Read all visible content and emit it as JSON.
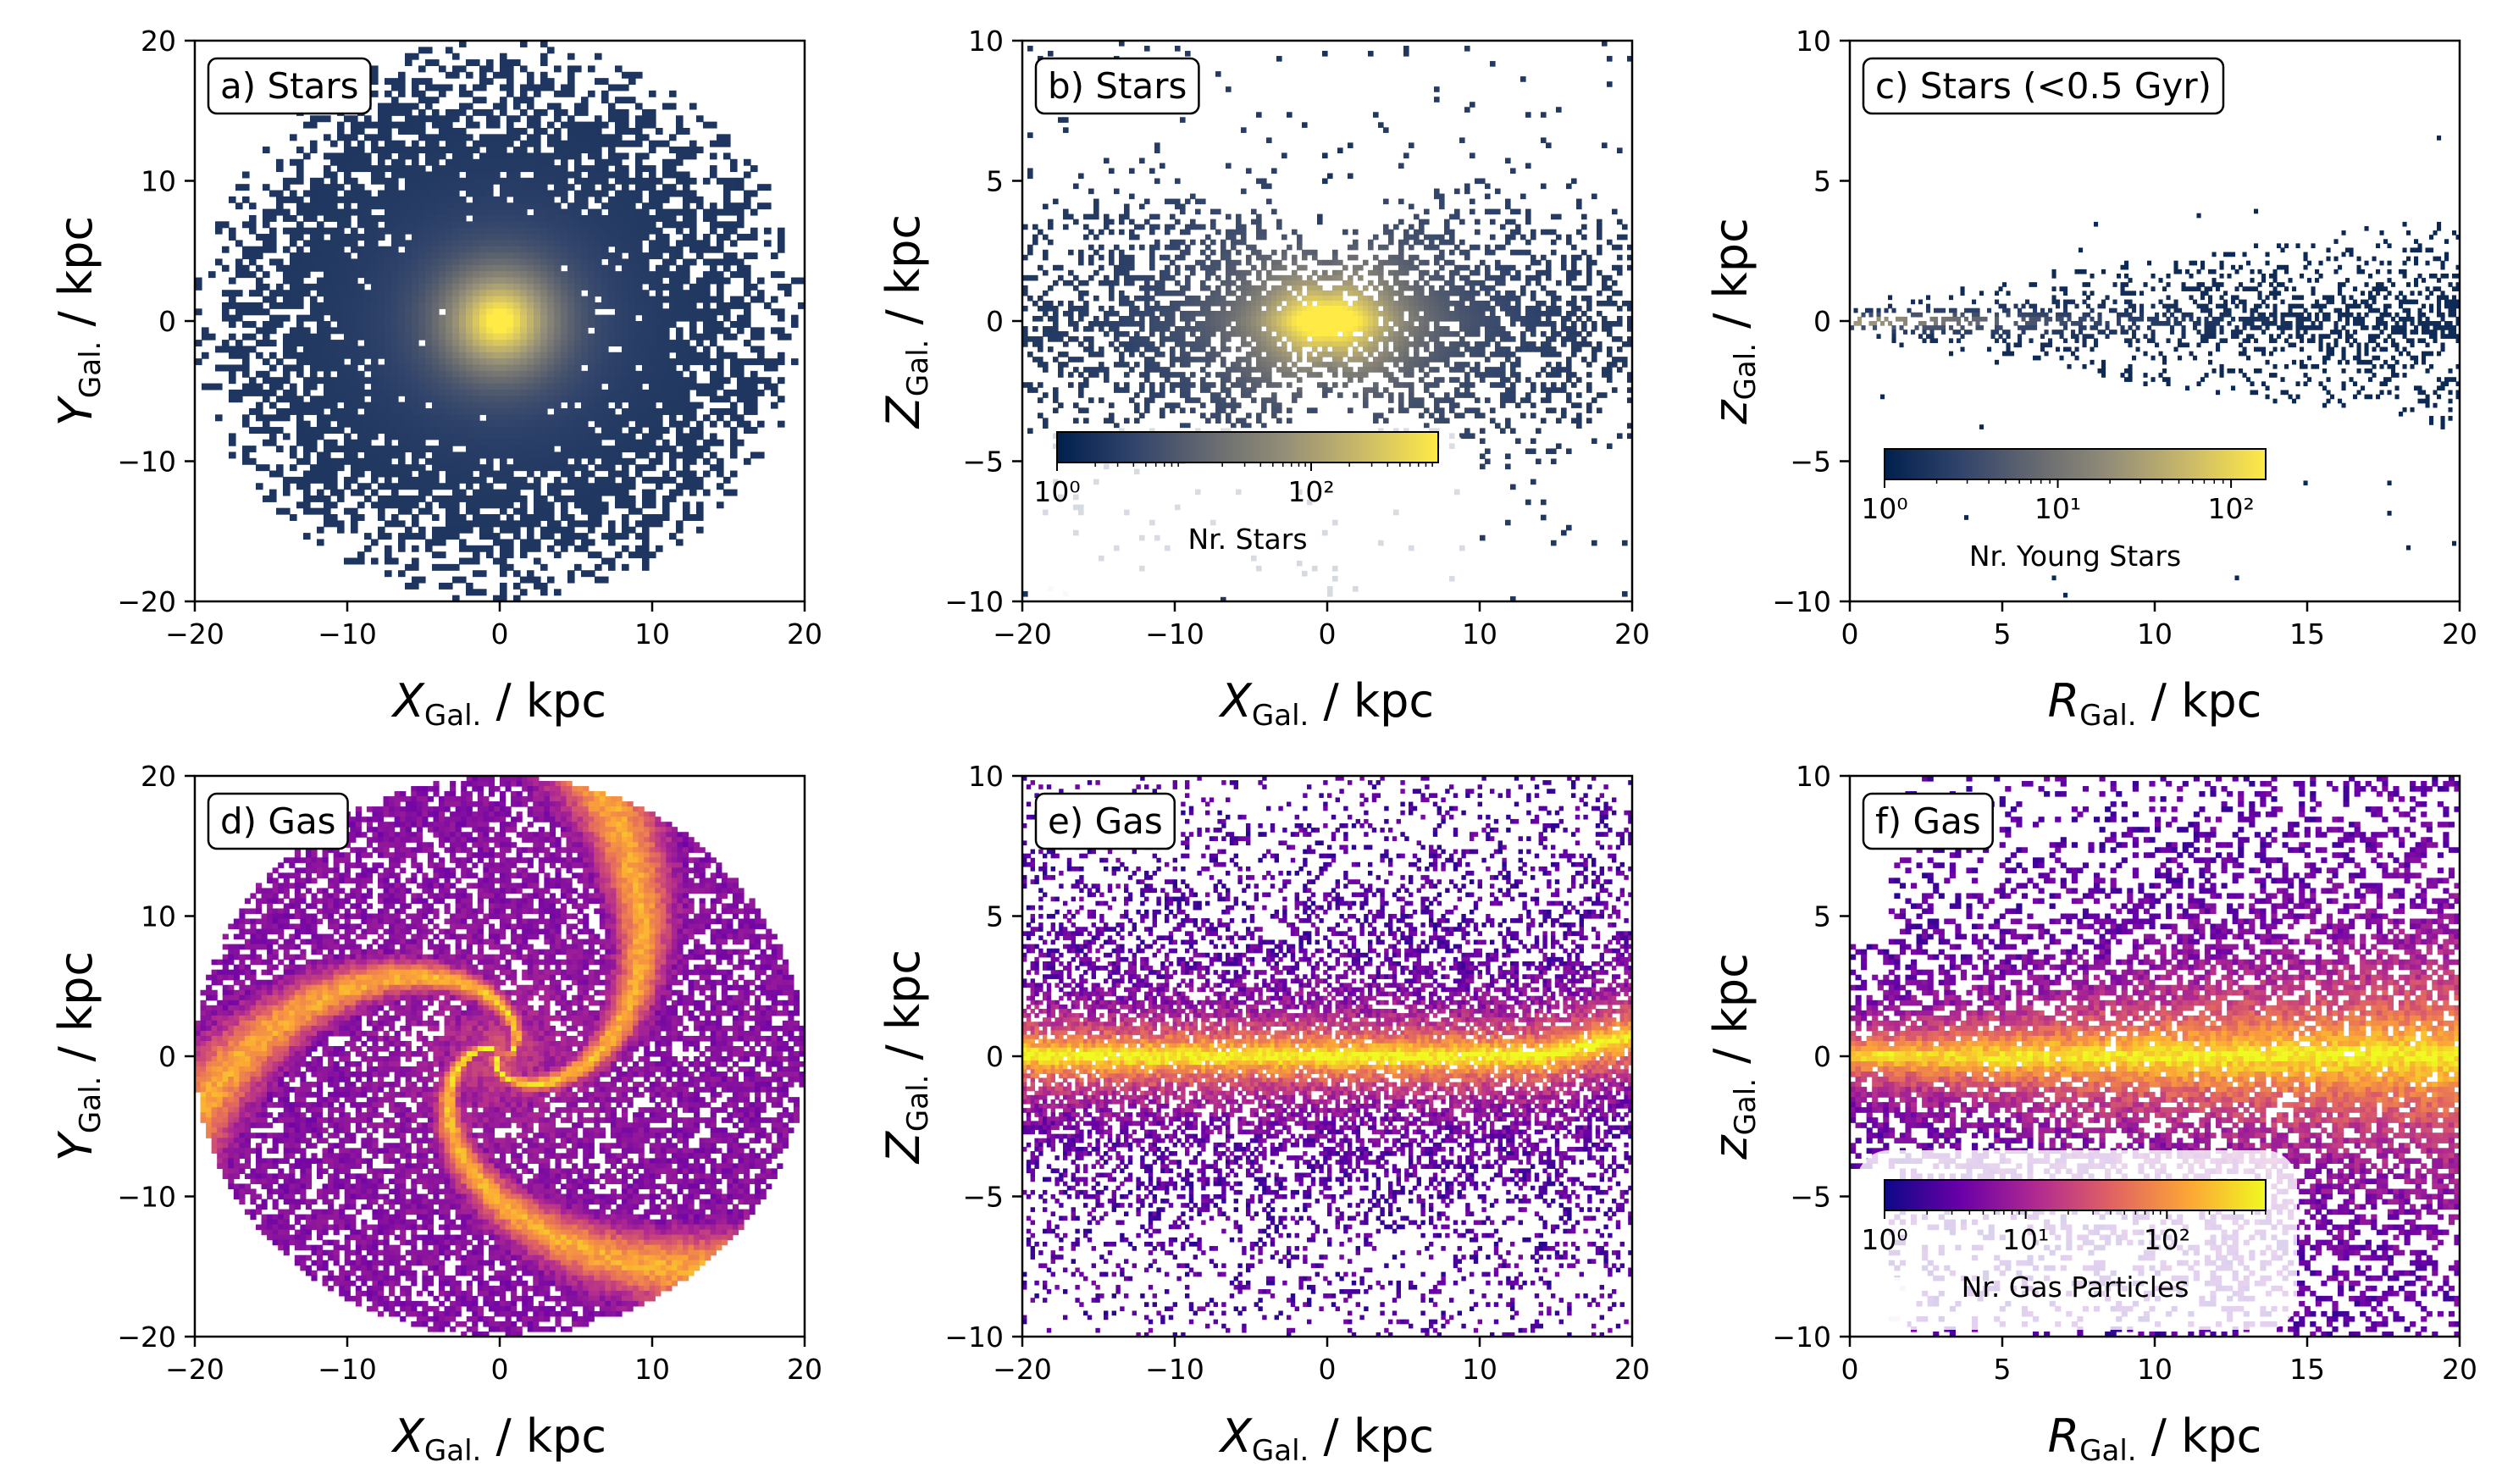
{
  "chart_data": [
    {
      "type": "heatmap",
      "title": "a) Stars",
      "xlabel": {
        "main": "X",
        "sub": "Gal.",
        "unit": " / kpc",
        "italic": true
      },
      "ylabel": {
        "main": "Y",
        "sub": "Gal.",
        "unit": " / kpc",
        "italic": true
      },
      "xlim": [
        -20,
        20
      ],
      "ylim": [
        -20,
        20
      ],
      "xticks": [
        "−20",
        "−10",
        "0",
        "10",
        "20"
      ],
      "yticks": [
        "20",
        "10",
        "0",
        "−10",
        "−20"
      ],
      "colormap": "cividis",
      "distribution": {
        "shape": "disk-face-on",
        "extent_radius": 20
      }
    },
    {
      "type": "heatmap",
      "title": "b) Stars",
      "xlabel": {
        "main": "X",
        "sub": "Gal.",
        "unit": " / kpc",
        "italic": true
      },
      "ylabel": {
        "main": "Z",
        "sub": "Gal.",
        "unit": " / kpc",
        "italic": true
      },
      "xlim": [
        -20,
        20
      ],
      "ylim": [
        -10,
        10
      ],
      "xticks": [
        "−20",
        "−10",
        "0",
        "10",
        "20"
      ],
      "yticks": [
        "10",
        "5",
        "0",
        "−5",
        "−10"
      ],
      "colormap": "cividis",
      "distribution": {
        "shape": "disk-edge-on"
      },
      "colorbar": {
        "label": "Nr. Stars",
        "scale": "log",
        "ticks": [
          "10⁰",
          "10²"
        ],
        "tick_values": [
          0,
          2
        ],
        "log_range": [
          0,
          3
        ]
      }
    },
    {
      "type": "heatmap",
      "title": "c) Stars (<0.5 Gyr)",
      "xlabel": {
        "main": "R",
        "sub": "Gal.",
        "unit": " / kpc",
        "italic": true
      },
      "ylabel": {
        "main": "z",
        "sub": "Gal.",
        "unit": " / kpc",
        "italic": true
      },
      "xlim": [
        0,
        20
      ],
      "ylim": [
        -10,
        10
      ],
      "xticks": [
        "0",
        "5",
        "10",
        "15",
        "20"
      ],
      "yticks": [
        "10",
        "5",
        "0",
        "−5",
        "−10"
      ],
      "colormap": "cividis",
      "distribution": {
        "shape": "thin-disk-radial"
      },
      "colorbar": {
        "label": "Nr. Young Stars",
        "scale": "log",
        "ticks": [
          "10⁰",
          "10¹",
          "10²"
        ],
        "tick_values": [
          0,
          1,
          2
        ],
        "log_range": [
          0,
          2.2
        ]
      }
    },
    {
      "type": "heatmap",
      "title": "d) Gas",
      "xlabel": {
        "main": "X",
        "sub": "Gal.",
        "unit": " / kpc",
        "italic": true
      },
      "ylabel": {
        "main": "Y",
        "sub": "Gal.",
        "unit": " / kpc",
        "italic": true
      },
      "xlim": [
        -20,
        20
      ],
      "ylim": [
        -20,
        20
      ],
      "xticks": [
        "−20",
        "−10",
        "0",
        "10",
        "20"
      ],
      "yticks": [
        "20",
        "10",
        "0",
        "−10",
        "−20"
      ],
      "colormap": "plasma",
      "distribution": {
        "shape": "spiral-face-on",
        "extent_radius": 20
      }
    },
    {
      "type": "heatmap",
      "title": "e) Gas",
      "xlabel": {
        "main": "X",
        "sub": "Gal.",
        "unit": " / kpc",
        "italic": true
      },
      "ylabel": {
        "main": "Z",
        "sub": "Gal.",
        "unit": " / kpc",
        "italic": true
      },
      "xlim": [
        -20,
        20
      ],
      "ylim": [
        -10,
        10
      ],
      "xticks": [
        "−20",
        "−10",
        "0",
        "10",
        "20"
      ],
      "yticks": [
        "10",
        "5",
        "0",
        "−5",
        "−10"
      ],
      "colormap": "plasma",
      "distribution": {
        "shape": "gas-edge-on"
      }
    },
    {
      "type": "heatmap",
      "title": "f) Gas",
      "xlabel": {
        "main": "R",
        "sub": "Gal.",
        "unit": " / kpc",
        "italic": true
      },
      "ylabel": {
        "main": "z",
        "sub": "Gal.",
        "unit": " / kpc",
        "italic": true
      },
      "xlim": [
        0,
        20
      ],
      "ylim": [
        -10,
        10
      ],
      "xticks": [
        "0",
        "5",
        "10",
        "15",
        "20"
      ],
      "yticks": [
        "10",
        "5",
        "0",
        "−5",
        "−10"
      ],
      "colormap": "plasma",
      "distribution": {
        "shape": "gas-radial"
      },
      "colorbar": {
        "label": "Nr. Gas Particles",
        "scale": "log",
        "ticks": [
          "10⁰",
          "10¹",
          "10²"
        ],
        "tick_values": [
          0,
          1,
          2
        ],
        "log_range": [
          0,
          2.7
        ]
      }
    }
  ],
  "colors": {
    "cividis": [
      "#00204d",
      "#31446b",
      "#666970",
      "#958f78",
      "#cbba69",
      "#ffea46"
    ],
    "plasma": [
      "#0d0887",
      "#6a00a8",
      "#b12a90",
      "#e16462",
      "#fca636",
      "#f0f921"
    ]
  }
}
